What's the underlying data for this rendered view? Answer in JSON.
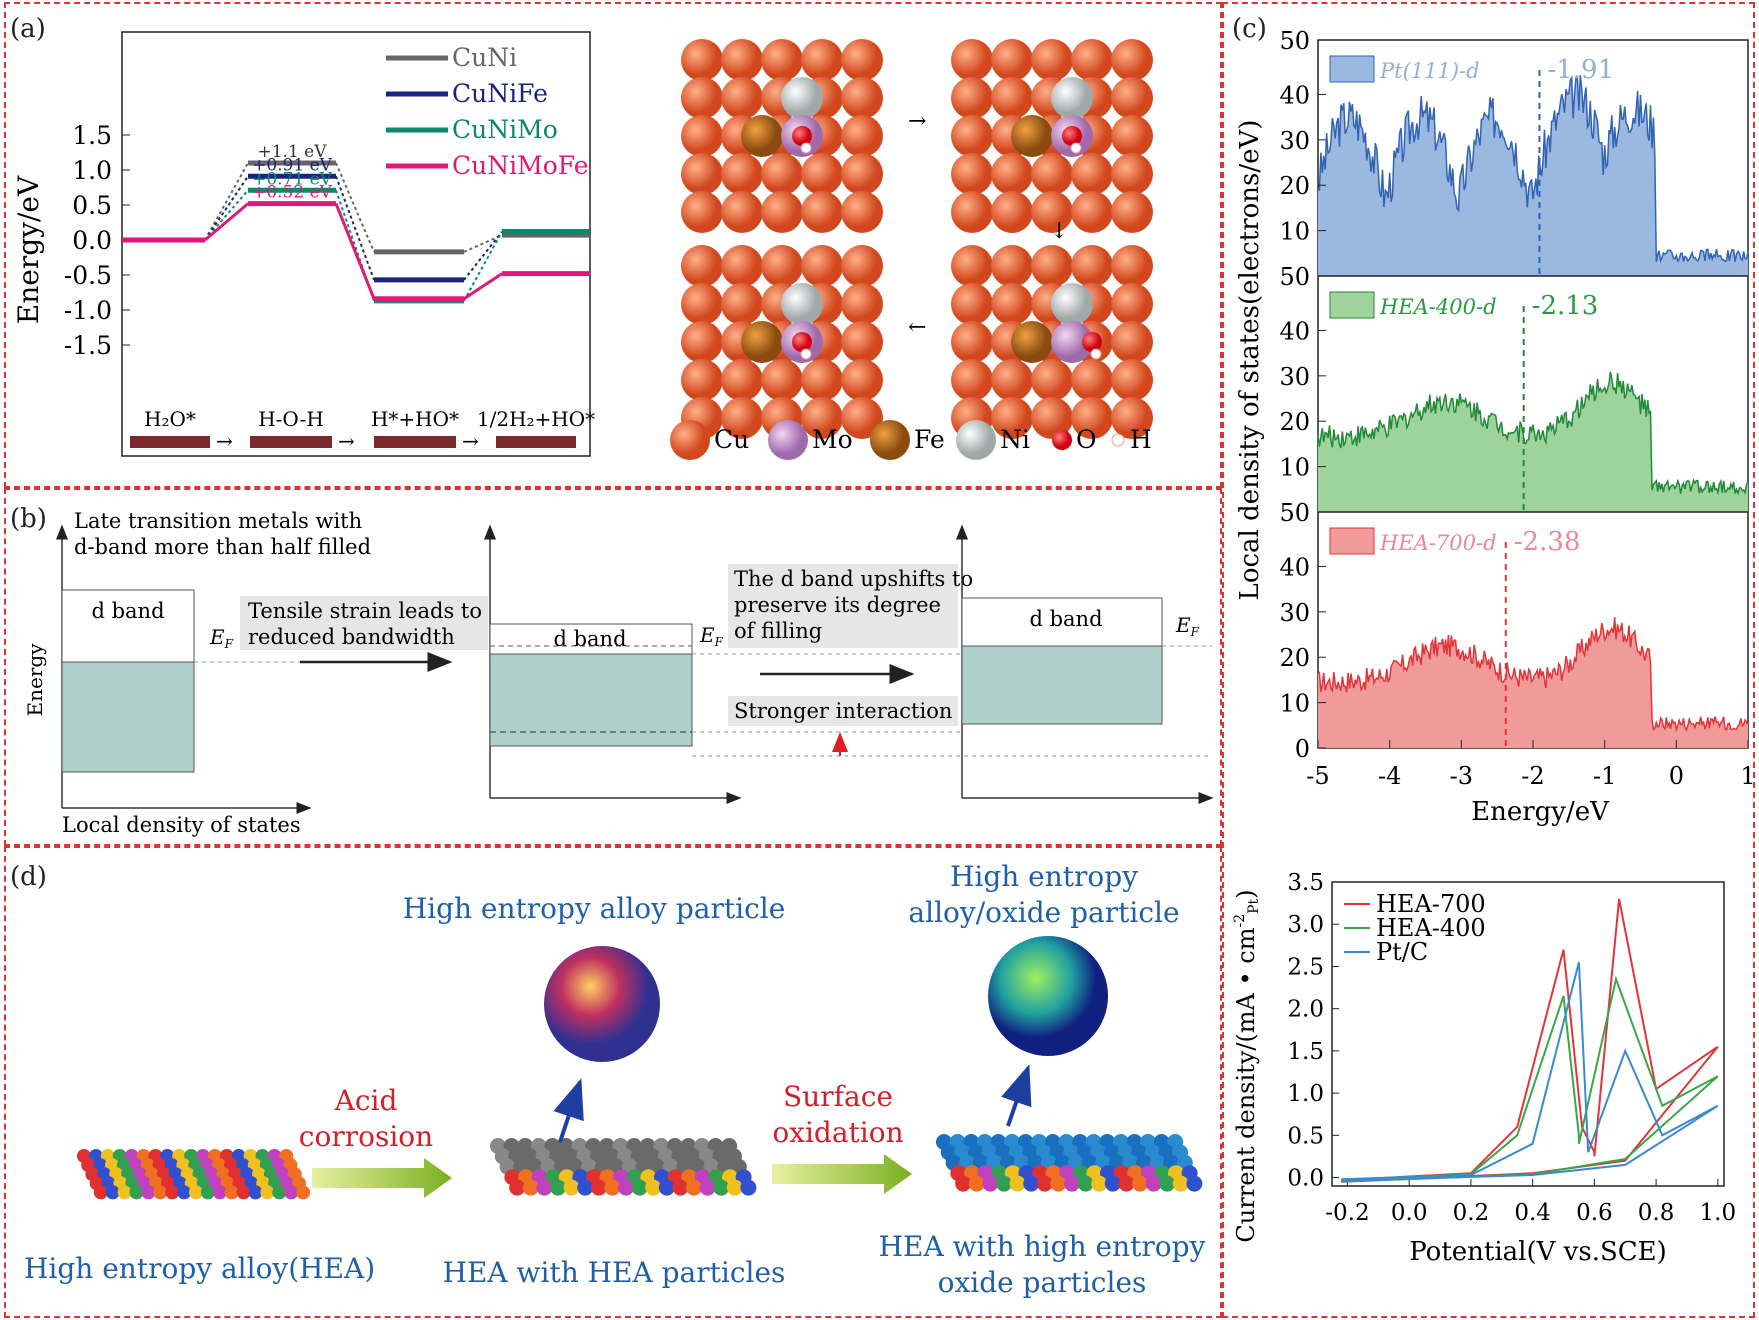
{
  "panels": {
    "a": {
      "label": "(a)",
      "ylabel": "Energy/eV",
      "yticks": [
        "1.5",
        "1.0",
        "0.5",
        "0.0",
        "-0.5",
        "-1.0",
        "-1.5"
      ],
      "legend": [
        "CuNi",
        "CuNiFe",
        "CuNiMo",
        "CuNiMoFe"
      ],
      "barriers": [
        "+1.1 eV",
        "+0.91 eV",
        "+0.71 eV",
        "+0.52 eV"
      ],
      "states": [
        "H₂O*",
        "H-O-H",
        "H*+HO*",
        "1/2H₂+HO*"
      ],
      "atoms_legend": [
        "Cu",
        "Mo",
        "Fe",
        "Ni",
        "O",
        "H"
      ]
    },
    "b": {
      "label": "(b)",
      "title": "Late transition metals with d-band more than half filled",
      "ylabel": "Energy",
      "xlabel": "Local density of states",
      "dband": "d band",
      "ef": "E",
      "ef_sub": "F",
      "text1a": "Tensile strain leads to",
      "text1b": "reduced bandwidth",
      "text2a": "The d band upshifts to",
      "text2b": "preserve its degree",
      "text2c": "of filling",
      "text3": "Stronger interaction"
    },
    "c": {
      "label": "(c)",
      "ylabel": "Local density of states(electrons/eV)",
      "xlabel": "Energy/eV",
      "xticks": [
        "-5",
        "-4",
        "-3",
        "-2",
        "-1",
        "0",
        "1"
      ],
      "sub_yticks": [
        "50",
        "40",
        "30",
        "20",
        "10"
      ],
      "bottom_yticks": [
        "50",
        "40",
        "30",
        "20",
        "10",
        "0"
      ],
      "series": [
        {
          "name": "Pt(111)-d",
          "center": "-1.91",
          "color": "#3264b4",
          "fill": "#9ab8e0",
          "labelcolor": "#8fb0d8"
        },
        {
          "name": "HEA-400-d",
          "center": "-2.13",
          "color": "#218a3a",
          "fill": "#9fd39c",
          "labelcolor": "#2a9a40"
        },
        {
          "name": "HEA-700-d",
          "center": "-2.38",
          "color": "#e0353a",
          "fill": "#f09a9a",
          "labelcolor": "#e78a96"
        }
      ]
    },
    "cv": {
      "ylabel": "Current density/(mA • cm⁻²Pt)",
      "xlabel": "Potential(V vs.SCE)",
      "xticks": [
        "-0.2",
        "0.0",
        "0.2",
        "0.4",
        "0.6",
        "0.8",
        "1.0"
      ],
      "yticks": [
        "3.5",
        "3.0",
        "2.5",
        "2.0",
        "1.5",
        "1.0",
        "0.5",
        "0.0"
      ],
      "legend": [
        "HEA-700",
        "HEA-400",
        "Pt/C"
      ]
    },
    "d": {
      "label": "(d)",
      "hea": "High entropy alloy(HEA)",
      "acid1": "Acid",
      "acid2": "corrosion",
      "hea_particle_title": "High entropy alloy particle",
      "hea_with": "HEA with HEA particles",
      "surf1": "Surface",
      "surf2": "oxidation",
      "oxide_title1": "High entropy",
      "oxide_title2": "alloy/oxide particle",
      "hea_oxide1": "HEA with high entropy",
      "hea_oxide2": "oxide particles"
    }
  },
  "colors": {
    "border": "#d33",
    "cuni": "#666666",
    "cunife": "#1a237e",
    "cunimo": "#0a8a6a",
    "cunimofe": "#e0187a",
    "blue_text": "#1f5fa8",
    "red_text": "#d0202a"
  }
}
